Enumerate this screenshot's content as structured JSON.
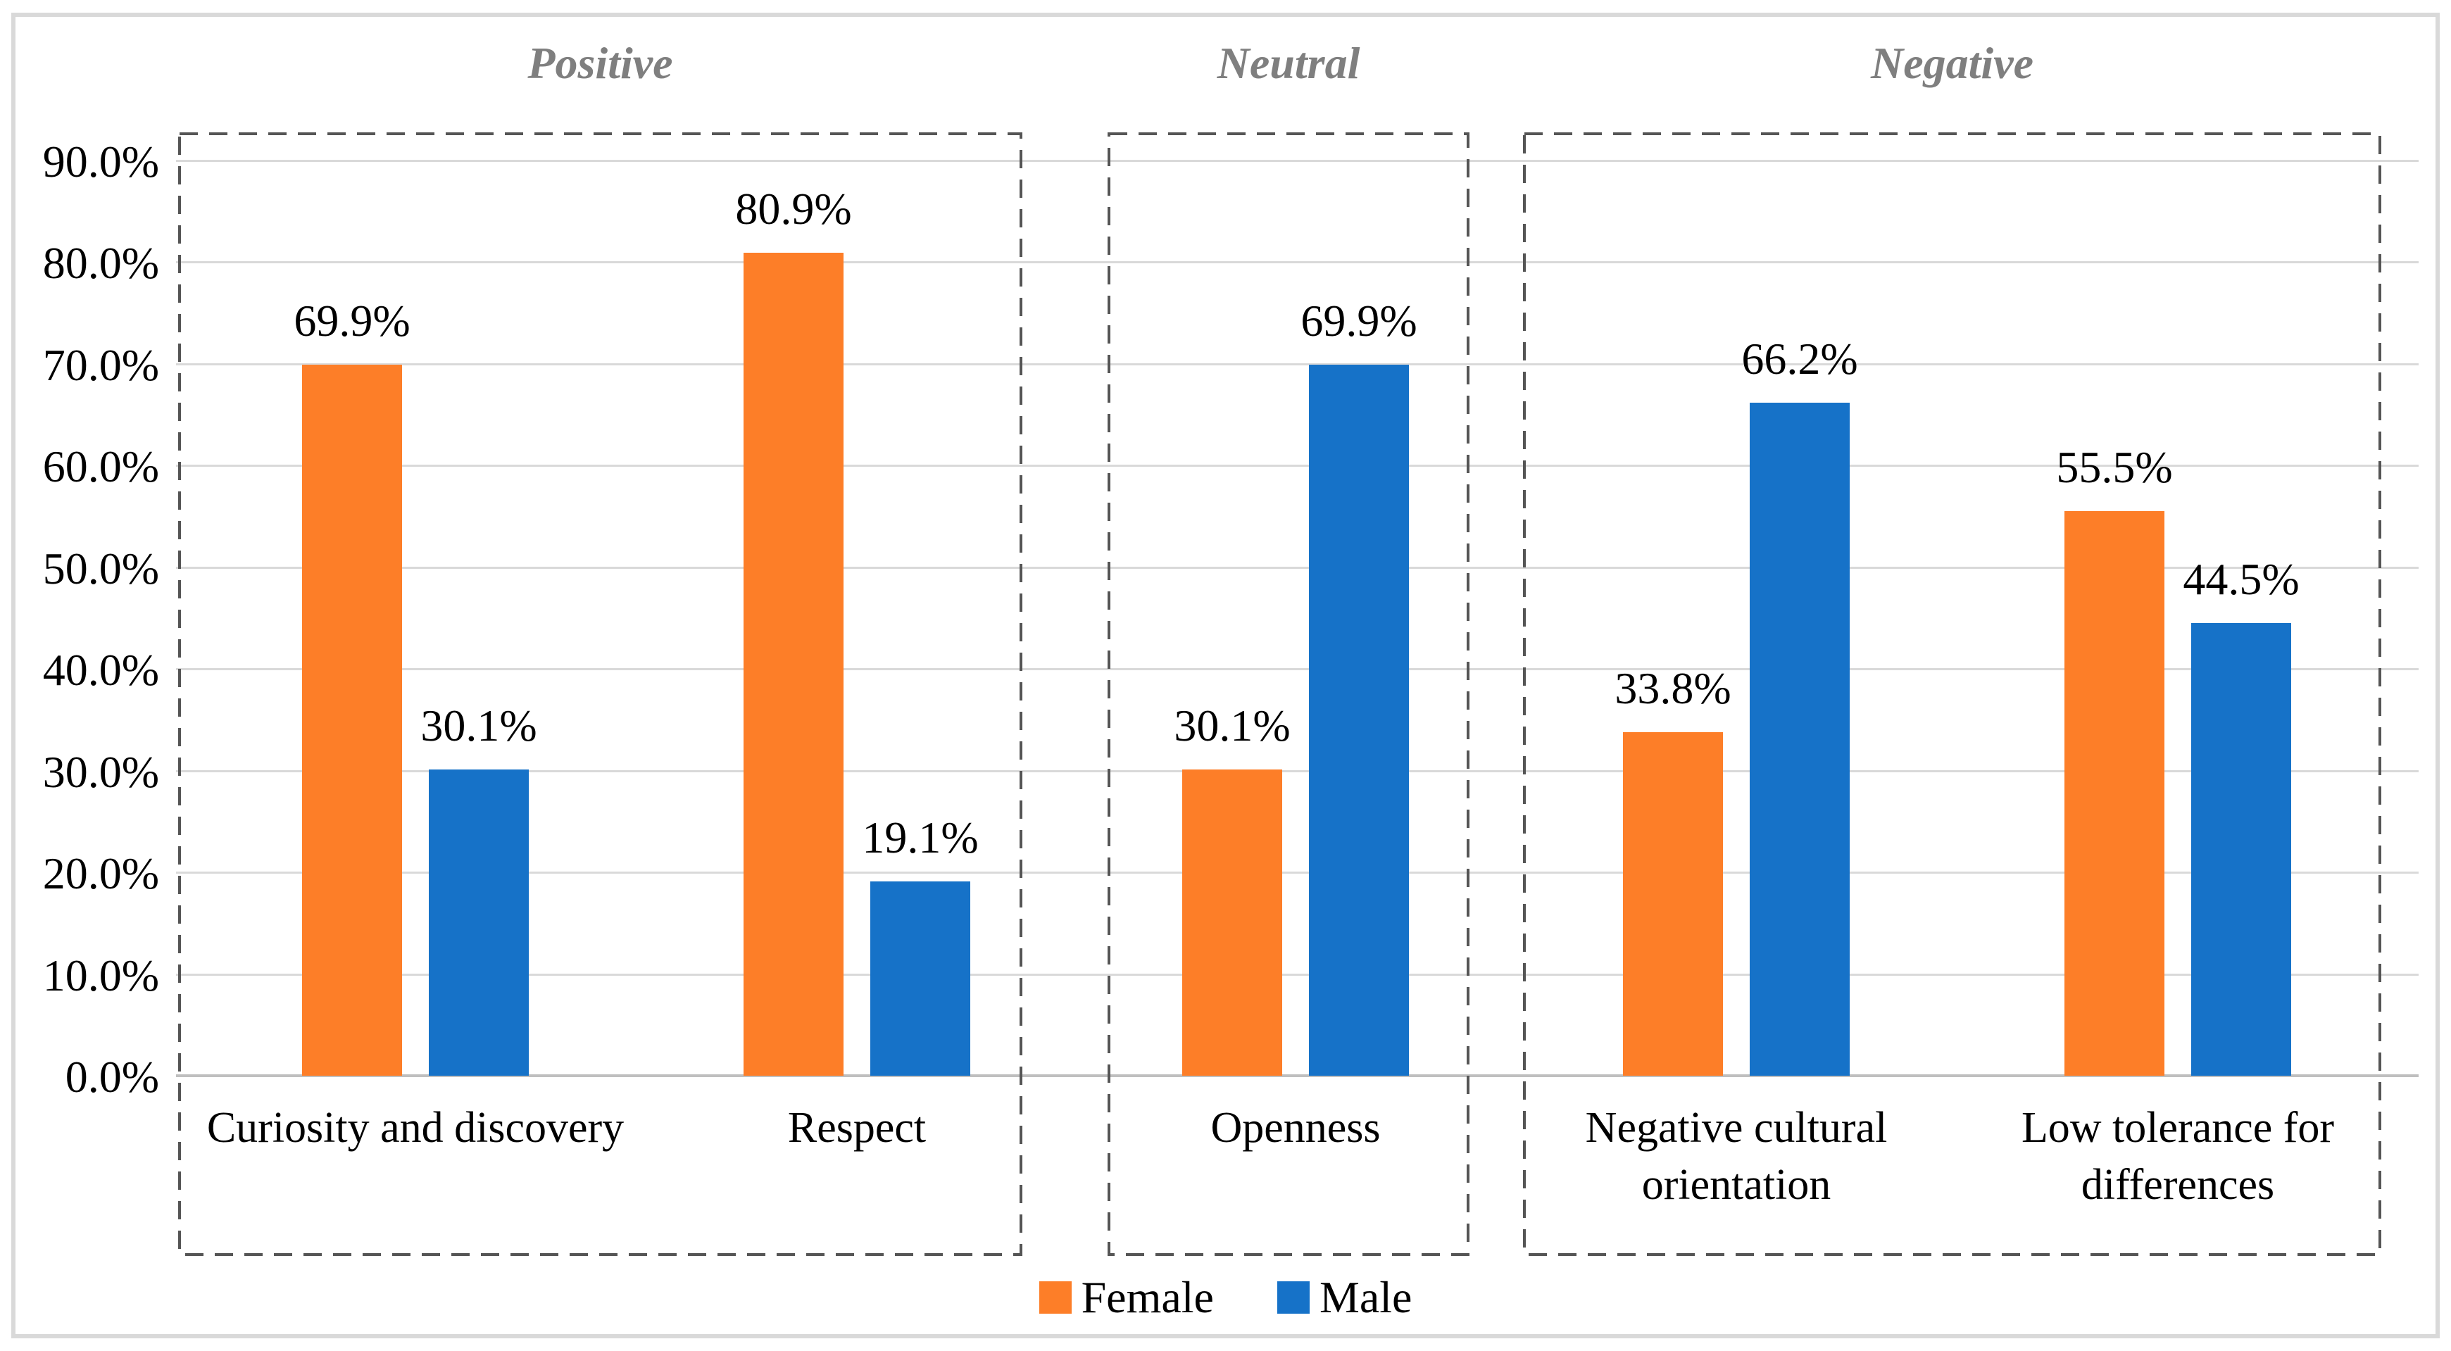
{
  "chart_data": {
    "type": "bar",
    "title": "",
    "xlabel": "",
    "ylabel": "",
    "ylim": [
      0,
      90
    ],
    "ytick_step": 10,
    "grid": true,
    "legend_position": "bottom",
    "yticks": [
      "0.0%",
      "10.0%",
      "20.0%",
      "30.0%",
      "40.0%",
      "50.0%",
      "60.0%",
      "70.0%",
      "80.0%",
      "90.0%"
    ],
    "groups": [
      {
        "label": "Positive"
      },
      {
        "label": "Neutral"
      },
      {
        "label": "Negative"
      }
    ],
    "series": [
      {
        "name": "Female",
        "color": "#fd7e28",
        "values": [
          69.9,
          80.9,
          30.1,
          33.8,
          55.5
        ]
      },
      {
        "name": "Male",
        "color": "#1672c8",
        "values": [
          30.1,
          19.1,
          69.9,
          66.2,
          44.5
        ]
      }
    ],
    "categories": [
      {
        "group": 0,
        "label": "Curiosity and discovery",
        "label_lines": [
          "Curiosity and discovery"
        ],
        "values": [
          69.9,
          30.1
        ],
        "value_labels": [
          "69.9%",
          "30.1%"
        ]
      },
      {
        "group": 0,
        "label": "Respect",
        "label_lines": [
          "Respect"
        ],
        "values": [
          80.9,
          19.1
        ],
        "value_labels": [
          "80.9%",
          "19.1%"
        ]
      },
      {
        "group": 1,
        "label": "Openness",
        "label_lines": [
          "Openness"
        ],
        "values": [
          30.1,
          69.9
        ],
        "value_labels": [
          "30.1%",
          "69.9%"
        ]
      },
      {
        "group": 2,
        "label": "Negative cultural orientation",
        "label_lines": [
          "Negative cultural",
          "orientation"
        ],
        "values": [
          33.8,
          66.2
        ],
        "value_labels": [
          "33.8%",
          "66.2%"
        ]
      },
      {
        "group": 2,
        "label": "Low tolerance for differences",
        "label_lines": [
          "Low tolerance for",
          "differences"
        ],
        "values": [
          55.5,
          44.5
        ],
        "value_labels": [
          "55.5%",
          "44.5%"
        ]
      }
    ]
  },
  "style": {
    "female_color": "#fd7e28",
    "male_color": "#1672c8",
    "gridline_color": "#d9d9d9",
    "axis_line_color": "#bfbfbf",
    "box_dash_color": "#555555",
    "group_label_color": "#7f7f7f",
    "frame_border_color": "#d9d9d9",
    "text_color": "#000000"
  }
}
